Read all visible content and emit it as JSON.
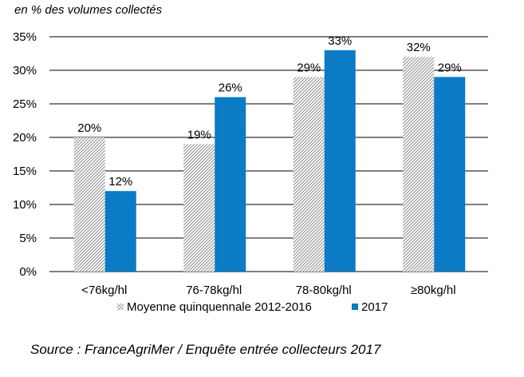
{
  "unit_label": "en % des volumes collectés",
  "source": "Source : FranceAgriMer / Enquête entrée collecteurs 2017",
  "chart_data": {
    "type": "bar",
    "categories": [
      "<76kg/hl",
      "76-78kg/hl",
      "78-80kg/hl",
      "≥80kg/hl"
    ],
    "series": [
      {
        "name": "Moyenne quinquennale 2012-2016",
        "values": [
          20,
          19,
          29,
          32
        ],
        "labels": [
          "20%",
          "19%",
          "29%",
          "32%"
        ],
        "pattern": "diagonal-hatch",
        "color": "#8a8a8a"
      },
      {
        "name": "2017",
        "values": [
          12,
          26,
          33,
          29
        ],
        "labels": [
          "12%",
          "26%",
          "33%",
          "29%"
        ],
        "color": "#0a7bc4"
      }
    ],
    "yticks": [
      0,
      5,
      10,
      15,
      20,
      25,
      30,
      35
    ],
    "ytick_labels": [
      "0%",
      "5%",
      "10%",
      "15%",
      "20%",
      "25%",
      "30%",
      "35%"
    ],
    "ylim": [
      0,
      35
    ],
    "grid": true,
    "legend_position": "bottom"
  }
}
